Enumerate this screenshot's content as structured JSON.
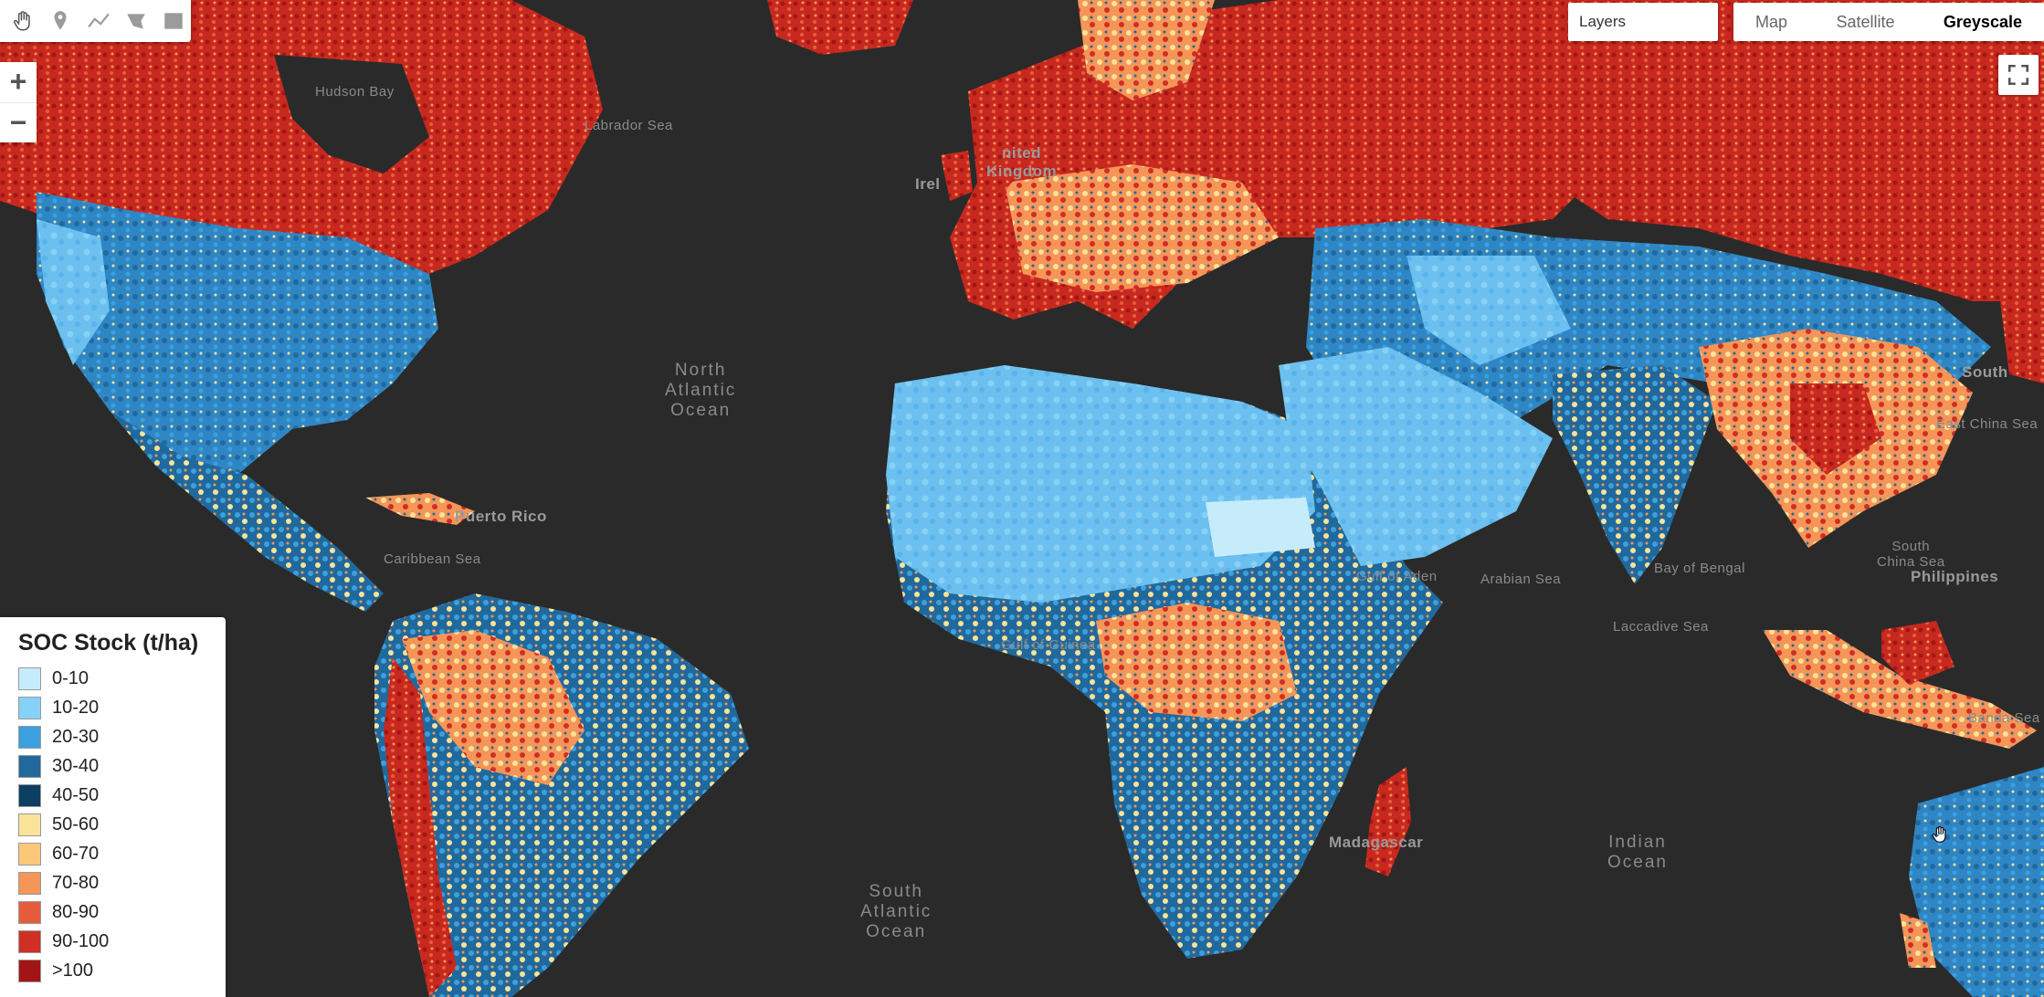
{
  "toolbar": {
    "tools": [
      "pan-hand-icon",
      "marker-icon",
      "polyline-icon",
      "polygon-icon",
      "rectangle-icon"
    ]
  },
  "zoom": {
    "in_label": "+",
    "out_label": "−"
  },
  "layers": {
    "label": "Layers"
  },
  "maptype": {
    "options": [
      "Map",
      "Satellite",
      "Greyscale"
    ],
    "selected": "Greyscale"
  },
  "legend": {
    "title": "SOC Stock (t/ha)",
    "items": [
      {
        "label": "0-10",
        "color": "#c6ecfb"
      },
      {
        "label": "10-20",
        "color": "#86d1f5"
      },
      {
        "label": "20-30",
        "color": "#3da0de"
      },
      {
        "label": "30-40",
        "color": "#21699c"
      },
      {
        "label": "40-50",
        "color": "#0c3f62"
      },
      {
        "label": "50-60",
        "color": "#fbe399"
      },
      {
        "label": "60-70",
        "color": "#fbc879"
      },
      {
        "label": "70-80",
        "color": "#f59558"
      },
      {
        "label": "80-90",
        "color": "#e65d3d"
      },
      {
        "label": "90-100",
        "color": "#cf2f24"
      },
      {
        "label": ">100",
        "color": "#a31515"
      }
    ]
  },
  "map_labels": {
    "hudson_bay": "Hudson Bay",
    "labrador_sea": "Labrador Sea",
    "north_atlantic": [
      "North",
      "Atlantic",
      "Ocean"
    ],
    "south_atlantic": [
      "South",
      "Atlantic",
      "Ocean"
    ],
    "indian_ocean": [
      "Indian",
      "Ocean"
    ],
    "caribbean_sea": "Caribbean Sea",
    "puerto_rico": "Puerto Rico",
    "gulf_of_aden": "Gulf of Aden",
    "arabian_sea": "Arabian Sea",
    "bay_of_bengal": "Bay of Bengal",
    "laccadive_sea": "Laccadive Sea",
    "south_china_sea": [
      "South",
      "China Sea"
    ],
    "philippines": "Philippines",
    "banda_sea": "Banda Sea",
    "gulf_of_guinea": "Gulf of Guinea",
    "ireland": "Irel",
    "united_kingdom": [
      "nited",
      "Kingdom"
    ],
    "madagascar": "Madagascar",
    "east_china_sea": "East China Sea",
    "south_korea": "South"
  },
  "colors": {
    "ocean": "#2a2a2a",
    "land_accent": "#3da0de"
  }
}
